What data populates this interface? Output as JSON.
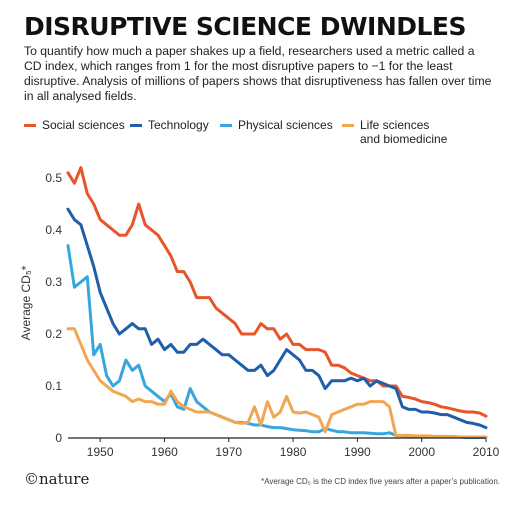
{
  "header": {
    "title": "DISRUPTIVE SCIENCE DWINDLES",
    "description": "To quantify how much a paper shakes up a field, researchers used a metric called a CD index, which ranges from 1 for the most disruptive papers to −1 for the least disruptive. Analysis of millions of papers shows that disruptiveness has fallen over time in all analysed fields."
  },
  "footer": {
    "brand": "©nature",
    "footnote": "*Average CD₅ is the CD index five years after a paper’s publication."
  },
  "chart_data": {
    "type": "line",
    "title": "DISRUPTIVE SCIENCE DWINDLES",
    "ylabel": "Average CD₅*",
    "xlabel": "",
    "xlim": [
      1945,
      2010
    ],
    "ylim": [
      0,
      0.55
    ],
    "xticks": [
      1950,
      1960,
      1970,
      1980,
      1990,
      2000,
      2010
    ],
    "yticks": [
      0,
      0.1,
      0.2,
      0.3,
      0.4,
      0.5
    ],
    "ytick_labels": [
      "0",
      "0.1",
      "0.2",
      "0.3",
      "0.4",
      "0.5"
    ],
    "grid": false,
    "legend": "top",
    "series": [
      {
        "name": "Social sciences",
        "color": "#e8552a",
        "points": [
          [
            1945,
            0.51
          ],
          [
            1946,
            0.49
          ],
          [
            1947,
            0.52
          ],
          [
            1948,
            0.47
          ],
          [
            1949,
            0.45
          ],
          [
            1950,
            0.42
          ],
          [
            1951,
            0.41
          ],
          [
            1952,
            0.4
          ],
          [
            1953,
            0.39
          ],
          [
            1954,
            0.39
          ],
          [
            1955,
            0.41
          ],
          [
            1956,
            0.45
          ],
          [
            1957,
            0.41
          ],
          [
            1958,
            0.4
          ],
          [
            1959,
            0.39
          ],
          [
            1960,
            0.37
          ],
          [
            1961,
            0.35
          ],
          [
            1962,
            0.32
          ],
          [
            1963,
            0.32
          ],
          [
            1964,
            0.3
          ],
          [
            1965,
            0.27
          ],
          [
            1966,
            0.27
          ],
          [
            1967,
            0.27
          ],
          [
            1968,
            0.25
          ],
          [
            1969,
            0.24
          ],
          [
            1970,
            0.23
          ],
          [
            1971,
            0.22
          ],
          [
            1972,
            0.2
          ],
          [
            1973,
            0.2
          ],
          [
            1974,
            0.2
          ],
          [
            1975,
            0.22
          ],
          [
            1976,
            0.21
          ],
          [
            1977,
            0.21
          ],
          [
            1978,
            0.19
          ],
          [
            1979,
            0.2
          ],
          [
            1980,
            0.18
          ],
          [
            1981,
            0.18
          ],
          [
            1982,
            0.17
          ],
          [
            1983,
            0.17
          ],
          [
            1984,
            0.17
          ],
          [
            1985,
            0.165
          ],
          [
            1986,
            0.14
          ],
          [
            1987,
            0.14
          ],
          [
            1988,
            0.135
          ],
          [
            1989,
            0.125
          ],
          [
            1990,
            0.12
          ],
          [
            1991,
            0.115
          ],
          [
            1992,
            0.11
          ],
          [
            1993,
            0.11
          ],
          [
            1994,
            0.1
          ],
          [
            1995,
            0.1
          ],
          [
            1996,
            0.1
          ],
          [
            1997,
            0.08
          ],
          [
            1998,
            0.078
          ],
          [
            1999,
            0.075
          ],
          [
            2000,
            0.07
          ],
          [
            2001,
            0.068
          ],
          [
            2002,
            0.065
          ],
          [
            2003,
            0.06
          ],
          [
            2004,
            0.058
          ],
          [
            2005,
            0.055
          ],
          [
            2006,
            0.052
          ],
          [
            2007,
            0.05
          ],
          [
            2008,
            0.05
          ],
          [
            2009,
            0.048
          ],
          [
            2010,
            0.042
          ]
        ]
      },
      {
        "name": "Technology",
        "color": "#1f5ea8",
        "points": [
          [
            1945,
            0.44
          ],
          [
            1946,
            0.42
          ],
          [
            1947,
            0.41
          ],
          [
            1948,
            0.37
          ],
          [
            1949,
            0.33
          ],
          [
            1950,
            0.28
          ],
          [
            1951,
            0.25
          ],
          [
            1952,
            0.22
          ],
          [
            1953,
            0.2
          ],
          [
            1954,
            0.21
          ],
          [
            1955,
            0.22
          ],
          [
            1956,
            0.21
          ],
          [
            1957,
            0.21
          ],
          [
            1958,
            0.18
          ],
          [
            1959,
            0.19
          ],
          [
            1960,
            0.17
          ],
          [
            1961,
            0.18
          ],
          [
            1962,
            0.165
          ],
          [
            1963,
            0.165
          ],
          [
            1964,
            0.18
          ],
          [
            1965,
            0.18
          ],
          [
            1966,
            0.19
          ],
          [
            1967,
            0.18
          ],
          [
            1968,
            0.17
          ],
          [
            1969,
            0.16
          ],
          [
            1970,
            0.16
          ],
          [
            1971,
            0.15
          ],
          [
            1972,
            0.14
          ],
          [
            1973,
            0.13
          ],
          [
            1974,
            0.13
          ],
          [
            1975,
            0.14
          ],
          [
            1976,
            0.12
          ],
          [
            1977,
            0.13
          ],
          [
            1978,
            0.15
          ],
          [
            1979,
            0.17
          ],
          [
            1980,
            0.16
          ],
          [
            1981,
            0.15
          ],
          [
            1982,
            0.13
          ],
          [
            1983,
            0.13
          ],
          [
            1984,
            0.12
          ],
          [
            1985,
            0.095
          ],
          [
            1986,
            0.11
          ],
          [
            1987,
            0.11
          ],
          [
            1988,
            0.11
          ],
          [
            1989,
            0.115
          ],
          [
            1990,
            0.11
          ],
          [
            1991,
            0.115
          ],
          [
            1992,
            0.1
          ],
          [
            1993,
            0.11
          ],
          [
            1994,
            0.105
          ],
          [
            1995,
            0.1
          ],
          [
            1996,
            0.095
          ],
          [
            1997,
            0.06
          ],
          [
            1998,
            0.055
          ],
          [
            1999,
            0.055
          ],
          [
            2000,
            0.05
          ],
          [
            2001,
            0.05
          ],
          [
            2002,
            0.048
          ],
          [
            2003,
            0.045
          ],
          [
            2004,
            0.045
          ],
          [
            2005,
            0.04
          ],
          [
            2006,
            0.035
          ],
          [
            2007,
            0.03
          ],
          [
            2008,
            0.028
          ],
          [
            2009,
            0.025
          ],
          [
            2010,
            0.02
          ]
        ]
      },
      {
        "name": "Physical sciences",
        "color": "#37a6df",
        "points": [
          [
            1945,
            0.37
          ],
          [
            1946,
            0.29
          ],
          [
            1947,
            0.3
          ],
          [
            1948,
            0.31
          ],
          [
            1949,
            0.16
          ],
          [
            1950,
            0.18
          ],
          [
            1951,
            0.12
          ],
          [
            1952,
            0.1
          ],
          [
            1953,
            0.11
          ],
          [
            1954,
            0.15
          ],
          [
            1955,
            0.13
          ],
          [
            1956,
            0.14
          ],
          [
            1957,
            0.1
          ],
          [
            1958,
            0.09
          ],
          [
            1959,
            0.08
          ],
          [
            1960,
            0.07
          ],
          [
            1961,
            0.085
          ],
          [
            1962,
            0.06
          ],
          [
            1963,
            0.055
          ],
          [
            1964,
            0.095
          ],
          [
            1965,
            0.07
          ],
          [
            1966,
            0.06
          ],
          [
            1967,
            0.05
          ],
          [
            1968,
            0.045
          ],
          [
            1969,
            0.04
          ],
          [
            1970,
            0.035
          ],
          [
            1971,
            0.03
          ],
          [
            1972,
            0.03
          ],
          [
            1973,
            0.028
          ],
          [
            1974,
            0.025
          ],
          [
            1975,
            0.025
          ],
          [
            1976,
            0.022
          ],
          [
            1977,
            0.02
          ],
          [
            1978,
            0.02
          ],
          [
            1979,
            0.018
          ],
          [
            1980,
            0.016
          ],
          [
            1981,
            0.015
          ],
          [
            1982,
            0.014
          ],
          [
            1983,
            0.012
          ],
          [
            1984,
            0.012
          ],
          [
            1985,
            0.018
          ],
          [
            1986,
            0.015
          ],
          [
            1987,
            0.012
          ],
          [
            1988,
            0.012
          ],
          [
            1989,
            0.01
          ],
          [
            1990,
            0.01
          ],
          [
            1991,
            0.01
          ],
          [
            1992,
            0.009
          ],
          [
            1993,
            0.008
          ],
          [
            1994,
            0.008
          ],
          [
            1995,
            0.01
          ],
          [
            1996,
            0.005
          ],
          [
            1997,
            0.004
          ],
          [
            1998,
            0.004
          ],
          [
            1999,
            0.003
          ],
          [
            2000,
            0.003
          ],
          [
            2001,
            0.003
          ],
          [
            2002,
            0.002
          ],
          [
            2003,
            0.002
          ],
          [
            2004,
            0.002
          ],
          [
            2005,
            0.002
          ],
          [
            2006,
            0.002
          ],
          [
            2007,
            0.001
          ],
          [
            2008,
            0.001
          ],
          [
            2009,
            0.001
          ],
          [
            2010,
            0.001
          ]
        ]
      },
      {
        "name": "Life sciences\nand biomedicine",
        "color": "#f2a652",
        "points": [
          [
            1945,
            0.21
          ],
          [
            1946,
            0.21
          ],
          [
            1947,
            0.18
          ],
          [
            1948,
            0.15
          ],
          [
            1949,
            0.13
          ],
          [
            1950,
            0.11
          ],
          [
            1951,
            0.1
          ],
          [
            1952,
            0.09
          ],
          [
            1953,
            0.085
          ],
          [
            1954,
            0.08
          ],
          [
            1955,
            0.07
          ],
          [
            1956,
            0.075
          ],
          [
            1957,
            0.07
          ],
          [
            1958,
            0.07
          ],
          [
            1959,
            0.065
          ],
          [
            1960,
            0.065
          ],
          [
            1961,
            0.09
          ],
          [
            1962,
            0.07
          ],
          [
            1963,
            0.06
          ],
          [
            1964,
            0.055
          ],
          [
            1965,
            0.05
          ],
          [
            1966,
            0.05
          ],
          [
            1967,
            0.05
          ],
          [
            1968,
            0.045
          ],
          [
            1969,
            0.04
          ],
          [
            1970,
            0.035
          ],
          [
            1971,
            0.03
          ],
          [
            1972,
            0.028
          ],
          [
            1973,
            0.03
          ],
          [
            1974,
            0.06
          ],
          [
            1975,
            0.025
          ],
          [
            1976,
            0.07
          ],
          [
            1977,
            0.04
          ],
          [
            1978,
            0.05
          ],
          [
            1979,
            0.08
          ],
          [
            1980,
            0.05
          ],
          [
            1981,
            0.048
          ],
          [
            1982,
            0.05
          ],
          [
            1983,
            0.045
          ],
          [
            1984,
            0.04
          ],
          [
            1985,
            0.012
          ],
          [
            1986,
            0.045
          ],
          [
            1987,
            0.05
          ],
          [
            1988,
            0.055
          ],
          [
            1989,
            0.06
          ],
          [
            1990,
            0.065
          ],
          [
            1991,
            0.065
          ],
          [
            1992,
            0.07
          ],
          [
            1993,
            0.07
          ],
          [
            1994,
            0.07
          ],
          [
            1995,
            0.06
          ],
          [
            1996,
            0.004
          ],
          [
            1997,
            0.005
          ],
          [
            1998,
            0.005
          ],
          [
            1999,
            0.004
          ],
          [
            2000,
            0.004
          ],
          [
            2001,
            0.004
          ],
          [
            2002,
            0.003
          ],
          [
            2003,
            0.003
          ],
          [
            2004,
            0.003
          ],
          [
            2005,
            0.003
          ],
          [
            2006,
            0.002
          ],
          [
            2007,
            0.002
          ],
          [
            2008,
            0.002
          ],
          [
            2009,
            0.002
          ],
          [
            2010,
            0.002
          ]
        ]
      }
    ]
  }
}
